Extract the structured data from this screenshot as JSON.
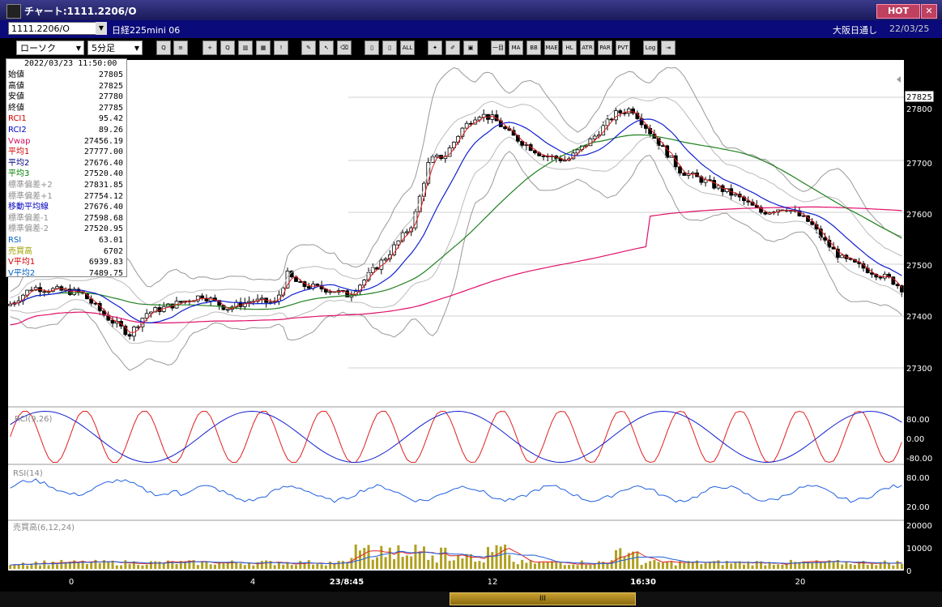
{
  "window": {
    "title": "チャート:1111.2206/O",
    "hot_label": "HOT",
    "close_label": "✕"
  },
  "symbol_bar": {
    "symbol": "1111.2206/O",
    "name": "日経225mini 06",
    "exchange": "大阪日通し",
    "date": "22/03/25"
  },
  "toolbar": {
    "chart_type": "ローソク",
    "interval": "5分足",
    "buttons": [
      {
        "name": "zoom-icon",
        "label": "Q"
      },
      {
        "name": "split-icon",
        "label": "≡"
      },
      {
        "name": "crosshair-icon",
        "label": "+"
      },
      {
        "name": "search-chart-icon",
        "label": "Q"
      },
      {
        "name": "bar-icon",
        "label": "▥"
      },
      {
        "name": "color-bars-icon",
        "label": "▦"
      },
      {
        "name": "alert-icon",
        "label": "!"
      },
      {
        "name": "pen-icon",
        "label": "✎"
      },
      {
        "name": "cursor-icon",
        "label": "↖"
      },
      {
        "name": "eraser-icon",
        "label": "⌫"
      },
      {
        "name": "candle-icon",
        "label": "▯"
      },
      {
        "name": "candle-split-icon",
        "label": "▯"
      },
      {
        "name": "all-icon",
        "label": "ALL"
      },
      {
        "name": "settings-icon",
        "label": "✦"
      },
      {
        "name": "brush-icon",
        "label": "✐"
      },
      {
        "name": "palette-icon",
        "label": "▣"
      },
      {
        "name": "ichimoku-icon",
        "label": "一目"
      },
      {
        "name": "ma-icon",
        "label": "MA"
      },
      {
        "name": "bb-icon",
        "label": "BB"
      },
      {
        "name": "mae-icon",
        "label": "MAE"
      },
      {
        "name": "hl-icon",
        "label": "HL"
      },
      {
        "name": "atr-icon",
        "label": "ATR"
      },
      {
        "name": "parabolic-icon",
        "label": "PAR"
      },
      {
        "name": "pvt-icon",
        "label": "PVT"
      },
      {
        "name": "log-icon",
        "label": "Log"
      },
      {
        "name": "export-icon",
        "label": "⇥"
      }
    ]
  },
  "info_panel": {
    "timestamp": "2022/03/23  11:50:00",
    "rows": [
      {
        "label": "始値",
        "value": "27805",
        "color": "#000000"
      },
      {
        "label": "高値",
        "value": "27825",
        "color": "#000000"
      },
      {
        "label": "安値",
        "value": "27780",
        "color": "#000000"
      },
      {
        "label": "終値",
        "value": "27785",
        "color": "#000000"
      },
      {
        "label": "RCI1",
        "value": "95.42",
        "color": "#d00000"
      },
      {
        "label": "RCI2",
        "value": "89.26",
        "color": "#0000c0"
      },
      {
        "label": "Vwap",
        "value": "27456.19",
        "color": "#d01060"
      },
      {
        "label": "平均1",
        "value": "27777.00",
        "color": "#d00000"
      },
      {
        "label": "平均2",
        "value": "27676.40",
        "color": "#000080"
      },
      {
        "label": "平均3",
        "value": "27520.40",
        "color": "#008000"
      },
      {
        "label": "標準偏差+2",
        "value": "27831.85",
        "color": "#909090"
      },
      {
        "label": "標準偏差+1",
        "value": "27754.12",
        "color": "#909090"
      },
      {
        "label": "移動平均線",
        "value": "27676.40",
        "color": "#0000c0"
      },
      {
        "label": "標準偏差-1",
        "value": "27598.68",
        "color": "#909090"
      },
      {
        "label": "標準偏差-2",
        "value": "27520.95",
        "color": "#909090"
      },
      {
        "label": "RSI",
        "value": "63.01",
        "color": "#0060c0"
      },
      {
        "label": "売買高",
        "value": "6702",
        "color": "#a0a000"
      },
      {
        "label": "V平均1",
        "value": "6939.83",
        "color": "#d00000"
      },
      {
        "label": "V平均2",
        "value": "7489.75",
        "color": "#0060c0"
      }
    ]
  },
  "price_axis": {
    "ticks": [
      "27800",
      "27700",
      "27600",
      "27500",
      "27400",
      "27300"
    ],
    "current": "27825"
  },
  "rci_panel": {
    "label": "RCI(9,26)",
    "ticks": [
      "80.00",
      "0.00",
      "-80.00"
    ]
  },
  "rsi_panel": {
    "label": "RSI(14)",
    "ticks": [
      "80.00",
      "20.00"
    ]
  },
  "volume_panel": {
    "label": "売買高(6,12,24)",
    "ticks": [
      "20000",
      "10000",
      "0"
    ]
  },
  "time_axis": {
    "ticks": [
      "0",
      "4",
      "23/8:45",
      "12",
      "16:30",
      "20"
    ]
  },
  "scrollbar": {
    "thumb_label": "III"
  }
}
